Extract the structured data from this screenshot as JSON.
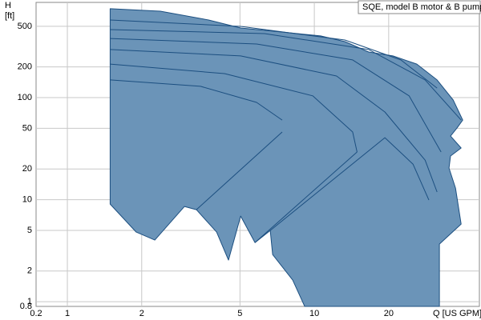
{
  "chart_data": {
    "type": "area",
    "title": "SQE, model B motor & B pump",
    "y_label": "H",
    "y_unit": "[ft]",
    "x_label": "Q [US GPM]",
    "x_axis_start_label": "0.2",
    "y_axis_start_label": "0.8",
    "log_x": true,
    "log_y": true,
    "grid": true,
    "xlim": [
      0.747,
      46.6
    ],
    "ylim": [
      0.9,
      857
    ],
    "xticks": [
      1,
      2,
      5,
      10,
      20
    ],
    "yticks": [
      1,
      2,
      5,
      10,
      20,
      50,
      100,
      200,
      500
    ],
    "series": [
      {
        "color": "#1c4f80",
        "fill": "#6b94b8",
        "x": [
          1.49,
          2.38,
          3.73,
          5.03,
          7.31,
          10.6,
          13.3,
          16.6,
          20.8,
          26.0,
          31.4,
          36.5,
          39.9,
          37.8,
          35.6,
          39.3,
          35.6,
          35.1,
          37.3,
          39.3,
          32.1,
          32.1,
          9.14,
          8.17,
          6.78,
          6.63,
          5.75,
          5.03,
          4.49,
          4.02,
          3.33,
          2.98,
          2.26,
          1.9,
          1.49
        ],
        "values": [
          743,
          703,
          576,
          481,
          440,
          402,
          354,
          280,
          256,
          213,
          149,
          94.7,
          60.2,
          50.3,
          42.0,
          32.1,
          26.8,
          20.4,
          13.0,
          5.77,
          3.67,
          0.9,
          0.9,
          1.63,
          2.9,
          4.99,
          3.8,
          6.91,
          2.56,
          4.81,
          7.98,
          8.58,
          4.02,
          4.81,
          9.06
        ]
      },
      {
        "color": "#1c4f80",
        "x": [
          1.49,
          3.46,
          5.84,
          7.41
        ],
        "values": [
          149,
          129,
          89.8,
          60.2
        ]
      },
      {
        "color": "#1c4f80",
        "x": [
          1.49,
          4.33,
          9.85,
          14.3,
          14.9
        ],
        "values": [
          213,
          172,
          104,
          46.0,
          29.3
        ]
      },
      {
        "color": "#1c4f80",
        "x": [
          1.49,
          5.03,
          12.3,
          19.3,
          28.1,
          31.4
        ],
        "values": [
          296,
          256,
          163,
          72.3,
          24.4,
          11.9
        ]
      },
      {
        "color": "#1c4f80",
        "x": [
          1.49,
          5.84,
          14.3,
          24.2,
          32.6
        ],
        "values": [
          380,
          335,
          234,
          104,
          29.3
        ]
      },
      {
        "color": "#1c4f80",
        "x": [
          1.49,
          6.29,
          16.6,
          28.1,
          39.3
        ],
        "values": [
          464,
          424,
          296,
          149,
          60.2
        ]
      },
      {
        "color": "#1c4f80",
        "x": [
          1.49,
          5.03,
          13.3,
          22.4,
          31.4
        ],
        "values": [
          576,
          499,
          367,
          234,
          124
        ]
      },
      {
        "color": "#1c4f80",
        "x": [
          7.41,
          3.33
        ],
        "values": [
          46.0,
          7.98
        ]
      },
      {
        "color": "#1c4f80",
        "x": [
          14.9,
          5.75
        ],
        "values": [
          29.3,
          3.8
        ]
      },
      {
        "color": "#1c4f80",
        "x": [
          6.63,
          19.3,
          25.1,
          29.1
        ],
        "values": [
          4.99,
          40.5,
          22.3,
          9.91
        ]
      }
    ]
  }
}
